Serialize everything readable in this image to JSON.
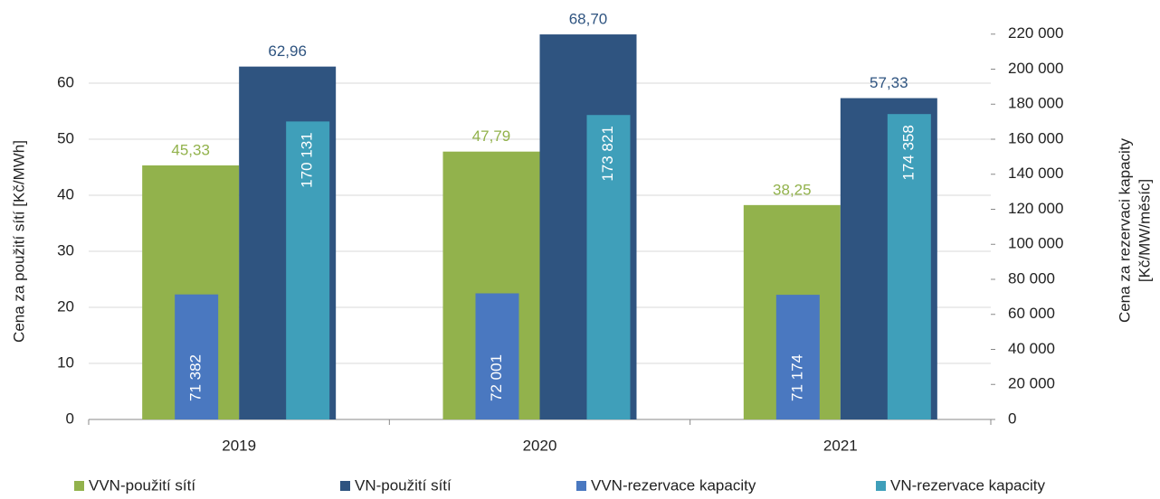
{
  "chart_data": {
    "type": "bar",
    "categories": [
      "2019",
      "2020",
      "2021"
    ],
    "ylabel": "Cena za použití sítí [Kč/MWh]",
    "y2label": [
      "Cena za rezervaci kapacity",
      "[Kč/MW/měsíc]"
    ],
    "ylim": [
      0,
      70
    ],
    "yticks": [
      0,
      10,
      20,
      30,
      40,
      50,
      60
    ],
    "y2lim": [
      0,
      224000
    ],
    "y2ticks": [
      {
        "value": 0,
        "label": "0"
      },
      {
        "value": 20000,
        "label": "20 000"
      },
      {
        "value": 40000,
        "label": "40 000"
      },
      {
        "value": 60000,
        "label": "60 000"
      },
      {
        "value": 80000,
        "label": "80 000"
      },
      {
        "value": 100000,
        "label": "100 000"
      },
      {
        "value": 120000,
        "label": "120 000"
      },
      {
        "value": 140000,
        "label": "140 000"
      },
      {
        "value": 160000,
        "label": "160 000"
      },
      {
        "value": 180000,
        "label": "180 000"
      },
      {
        "value": 200000,
        "label": "200 000"
      },
      {
        "value": 220000,
        "label": "220 000"
      }
    ],
    "grid": true,
    "legend": "bottom",
    "series": [
      {
        "name": "VVN-použití sítí",
        "color": "#92b24c",
        "values": [
          45.33,
          47.79,
          38.25
        ],
        "value_labels": [
          "45,33",
          "47,79",
          "38,25"
        ]
      },
      {
        "name": "VN-použití sítí",
        "color": "#2f5480",
        "values": [
          62.96,
          68.7,
          57.33
        ],
        "value_labels": [
          "62,96",
          "68,70",
          "57,33"
        ]
      },
      {
        "name": "VVN-rezervace kapacity",
        "color": "#4a78c0",
        "axis": "y2",
        "values": [
          71382,
          72001,
          71174
        ],
        "value_labels": [
          "71 382",
          "72 001",
          "71 174"
        ]
      },
      {
        "name": "VN-rezervace kapacity",
        "color": "#3f9fba",
        "axis": "y2",
        "values": [
          170131,
          173821,
          174358
        ],
        "value_labels": [
          "170 131",
          "173 821",
          "174 358"
        ]
      }
    ]
  }
}
